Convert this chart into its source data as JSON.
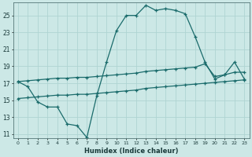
{
  "bg_color": "#cce8e6",
  "grid_color": "#afd4d2",
  "line_color": "#1a6b6b",
  "xlabel": "Humidex (Indice chaleur)",
  "xlim": [
    -0.5,
    23.5
  ],
  "ylim": [
    10.5,
    26.5
  ],
  "yticks": [
    11,
    13,
    15,
    17,
    19,
    21,
    23,
    25
  ],
  "xticks": [
    0,
    1,
    2,
    3,
    4,
    5,
    6,
    7,
    8,
    9,
    10,
    11,
    12,
    13,
    14,
    15,
    16,
    17,
    18,
    19,
    20,
    21,
    22,
    23
  ],
  "series1_x": [
    0,
    1,
    2,
    3,
    4,
    5,
    6,
    7,
    8,
    9,
    10,
    11,
    12,
    13,
    14,
    15,
    16,
    17,
    18,
    19,
    20,
    21,
    22,
    23
  ],
  "series1_y": [
    17.2,
    16.6,
    14.8,
    14.2,
    14.2,
    12.2,
    12.0,
    10.6,
    15.5,
    19.5,
    23.2,
    25.0,
    25.0,
    26.2,
    25.6,
    25.8,
    25.6,
    25.2,
    22.5,
    19.5,
    17.5,
    18.0,
    19.5,
    17.5
  ],
  "series2_x": [
    0,
    1,
    2,
    3,
    4,
    5,
    6,
    7,
    8,
    9,
    10,
    11,
    12,
    13,
    14,
    15,
    16,
    17,
    18,
    19,
    20,
    21,
    22,
    23
  ],
  "series2_y": [
    17.2,
    17.3,
    17.4,
    17.5,
    17.6,
    17.6,
    17.7,
    17.7,
    17.8,
    17.9,
    18.0,
    18.1,
    18.2,
    18.4,
    18.5,
    18.6,
    18.7,
    18.8,
    18.9,
    19.3,
    17.8,
    18.0,
    18.3,
    18.3
  ],
  "series3_x": [
    0,
    1,
    2,
    3,
    4,
    5,
    6,
    7,
    8,
    9,
    10,
    11,
    12,
    13,
    14,
    15,
    16,
    17,
    18,
    19,
    20,
    21,
    22,
    23
  ],
  "series3_y": [
    15.2,
    15.3,
    15.4,
    15.5,
    15.6,
    15.6,
    15.7,
    15.7,
    15.8,
    15.9,
    16.0,
    16.1,
    16.2,
    16.4,
    16.5,
    16.6,
    16.7,
    16.8,
    16.9,
    17.0,
    17.1,
    17.2,
    17.3,
    17.4
  ]
}
